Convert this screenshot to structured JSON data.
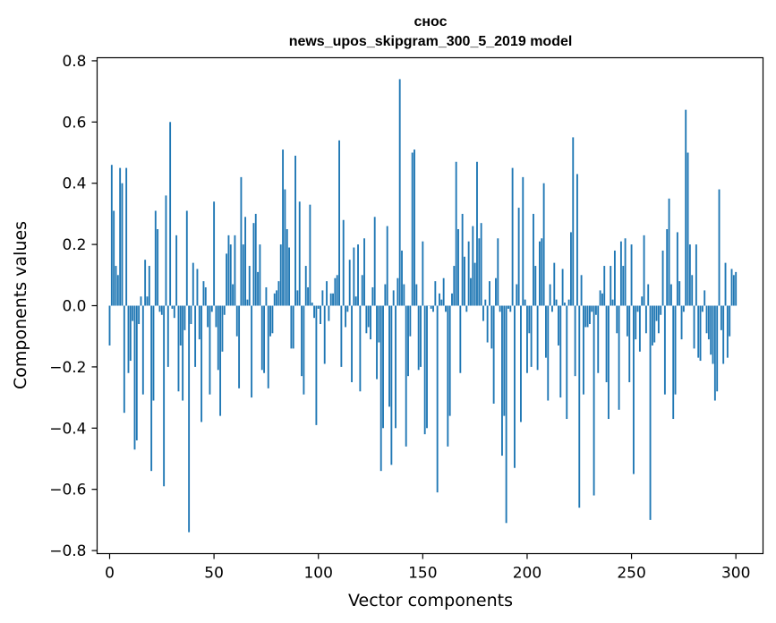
{
  "chart_data": {
    "type": "bar",
    "title_line1": "снос",
    "title_line2": "news_upos_skipgram_300_5_2019 model",
    "xlabel": "Vector components",
    "ylabel": "Components values",
    "xlim": [
      -6,
      313
    ],
    "ylim": [
      -0.81,
      0.81
    ],
    "xticks": [
      0,
      50,
      100,
      150,
      200,
      250,
      300
    ],
    "xtick_labels": [
      "0",
      "50",
      "100",
      "150",
      "200",
      "250",
      "300"
    ],
    "yticks": [
      -0.8,
      -0.6,
      -0.4,
      -0.2,
      0.0,
      0.2,
      0.4,
      0.6,
      0.8
    ],
    "ytick_labels": [
      "−0.8",
      "−0.6",
      "−0.4",
      "−0.2",
      "0.0",
      "0.2",
      "0.4",
      "0.6",
      "0.8"
    ],
    "bar_color": "#1f77b4",
    "grid": false,
    "values": [
      -0.13,
      0.46,
      0.31,
      0.13,
      0.1,
      0.45,
      0.4,
      -0.35,
      0.45,
      -0.22,
      -0.18,
      -0.05,
      -0.47,
      -0.44,
      -0.06,
      0.03,
      -0.29,
      0.15,
      0.03,
      0.13,
      -0.54,
      -0.31,
      0.31,
      0.25,
      -0.02,
      -0.03,
      -0.59,
      0.36,
      -0.2,
      0.6,
      -0.01,
      -0.04,
      0.23,
      -0.28,
      -0.13,
      -0.31,
      -0.08,
      0.31,
      -0.74,
      -0.06,
      0.14,
      -0.2,
      0.12,
      -0.11,
      -0.38,
      0.08,
      0.06,
      -0.07,
      -0.29,
      -0.02,
      0.34,
      -0.07,
      -0.21,
      -0.36,
      -0.15,
      -0.03,
      0.17,
      0.23,
      0.2,
      0.07,
      0.23,
      -0.1,
      -0.27,
      0.42,
      0.2,
      0.29,
      0.02,
      0.13,
      -0.3,
      0.27,
      0.3,
      0.11,
      0.2,
      -0.21,
      -0.22,
      0.06,
      -0.27,
      -0.1,
      -0.09,
      0.04,
      0.05,
      0.08,
      0.2,
      0.51,
      0.38,
      0.25,
      0.19,
      -0.14,
      -0.14,
      0.49,
      0.05,
      0.34,
      -0.23,
      -0.29,
      0.13,
      0.06,
      0.33,
      0.01,
      -0.04,
      -0.39,
      -0.01,
      -0.06,
      0.05,
      -0.19,
      0.08,
      -0.05,
      0.04,
      0.04,
      0.09,
      0.1,
      0.54,
      -0.2,
      0.28,
      -0.07,
      -0.02,
      0.15,
      -0.25,
      0.19,
      0.03,
      0.2,
      -0.28,
      0.1,
      0.22,
      -0.09,
      -0.07,
      -0.11,
      0.06,
      0.29,
      -0.24,
      -0.12,
      -0.54,
      -0.4,
      0.07,
      0.26,
      -0.33,
      -0.52,
      0.05,
      -0.4,
      0.09,
      0.74,
      0.18,
      0.07,
      -0.46,
      -0.23,
      -0.1,
      0.5,
      0.51,
      0.07,
      -0.21,
      -0.2,
      0.21,
      -0.42,
      -0.4,
      0.0,
      -0.01,
      -0.02,
      0.08,
      -0.61,
      0.04,
      0.02,
      0.09,
      -0.02,
      -0.46,
      -0.36,
      0.04,
      0.13,
      0.47,
      0.25,
      -0.22,
      0.3,
      0.16,
      -0.02,
      0.21,
      0.09,
      0.26,
      0.14,
      0.47,
      0.22,
      0.27,
      -0.05,
      0.02,
      -0.12,
      0.08,
      -0.14,
      -0.32,
      0.09,
      0.22,
      -0.02,
      -0.49,
      -0.36,
      -0.71,
      -0.01,
      -0.02,
      0.45,
      -0.53,
      0.07,
      0.32,
      -0.38,
      0.42,
      0.02,
      -0.22,
      -0.09,
      -0.2,
      0.3,
      0.13,
      -0.21,
      0.21,
      0.22,
      0.4,
      -0.17,
      -0.31,
      0.07,
      -0.02,
      0.14,
      0.02,
      -0.13,
      -0.3,
      0.12,
      0.01,
      -0.37,
      0.02,
      0.24,
      0.55,
      -0.23,
      0.43,
      -0.66,
      0.1,
      -0.29,
      -0.07,
      -0.07,
      -0.06,
      -0.02,
      -0.62,
      -0.03,
      -0.22,
      0.05,
      0.04,
      0.13,
      -0.25,
      -0.37,
      0.13,
      0.02,
      0.18,
      -0.09,
      -0.34,
      0.21,
      0.13,
      0.22,
      -0.1,
      -0.25,
      0.2,
      -0.55,
      -0.11,
      -0.02,
      -0.15,
      0.03,
      0.23,
      -0.09,
      0.07,
      -0.7,
      -0.13,
      -0.12,
      -0.05,
      -0.09,
      -0.03,
      0.18,
      -0.29,
      0.25,
      0.35,
      0.07,
      -0.37,
      -0.29,
      0.24,
      0.08,
      -0.11,
      -0.02,
      0.64,
      0.5,
      0.2,
      0.1,
      -0.14,
      0.2,
      -0.17,
      -0.18,
      -0.02,
      0.05,
      -0.09,
      -0.11,
      -0.16,
      -0.19,
      -0.31,
      -0.28,
      0.38,
      -0.08,
      -0.19,
      0.14,
      -0.17,
      -0.1,
      0.12,
      0.1,
      0.11
    ]
  }
}
